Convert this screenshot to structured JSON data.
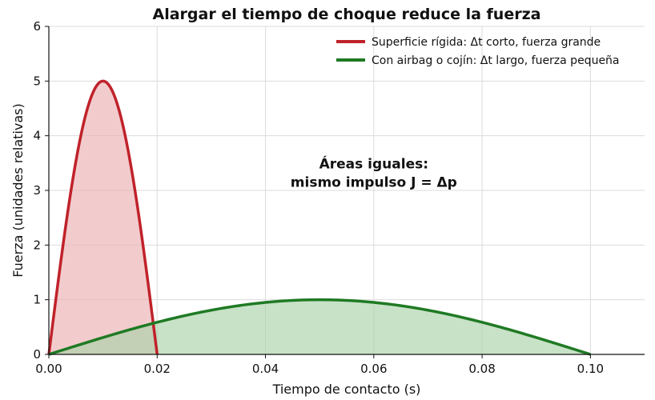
{
  "chart_data": {
    "type": "area",
    "title": "Alargar el tiempo de choque reduce la fuerza",
    "xlabel": "Tiempo de contacto (s)",
    "ylabel": "Fuerza (unidades relativas)",
    "xlim": [
      0,
      0.11
    ],
    "ylim": [
      0,
      6
    ],
    "xticks": [
      0.0,
      0.02,
      0.04,
      0.06,
      0.08,
      0.1
    ],
    "xtick_labels": [
      "0.00",
      "0.02",
      "0.04",
      "0.06",
      "0.08",
      "0.10"
    ],
    "yticks": [
      0,
      1,
      2,
      3,
      4,
      5,
      6
    ],
    "ytick_labels": [
      "0",
      "1",
      "2",
      "3",
      "4",
      "5",
      "6"
    ],
    "grid": true,
    "legend_position": "top-right",
    "series": [
      {
        "name": "Superficie rígida: Δt corto, fuerza grande",
        "shape": "half-sine",
        "x": [
          0.0,
          0.02
        ],
        "peak_x": 0.01,
        "peak_y": 5,
        "color": "#c0222a",
        "fill": "#ebb0b2"
      },
      {
        "name": "Con airbag o cojín: Δt largo, fuerza pequeña",
        "shape": "half-sine",
        "x": [
          0.0,
          0.1
        ],
        "peak_x": 0.05,
        "peak_y": 1,
        "color": "#1f7a24",
        "fill": "#a9d3a7"
      }
    ],
    "annotation": {
      "lines": [
        "Áreas iguales:",
        "mismo impulso J = Δp"
      ],
      "x": 0.06,
      "y": 3.4
    }
  }
}
